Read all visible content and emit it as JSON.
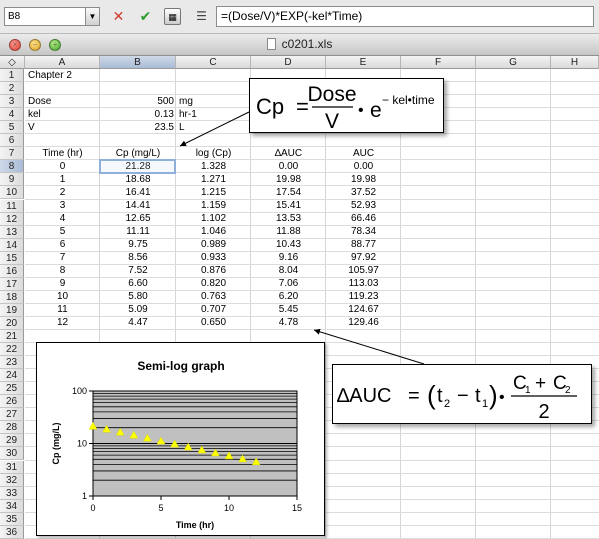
{
  "formula_bar": {
    "name_box": "B8",
    "formula": "=(Dose/V)*EXP(-kel*Time)"
  },
  "window": {
    "title": "c0201.xls"
  },
  "columns": [
    "A",
    "B",
    "C",
    "D",
    "E",
    "F",
    "G",
    "H"
  ],
  "selected_column": "B",
  "rows": [
    "1",
    "2",
    "3",
    "4",
    "5",
    "6",
    "7",
    "8",
    "9",
    "10",
    "11",
    "12",
    "13",
    "14",
    "15",
    "16",
    "17",
    "18",
    "19",
    "20",
    "21",
    "22",
    "23",
    "24",
    "25",
    "26",
    "27",
    "28",
    "29",
    "30",
    "31",
    "32",
    "33",
    "34",
    "35",
    "36"
  ],
  "selected_row": "8",
  "sheet": {
    "title": "Chapter 2",
    "params": [
      {
        "label": "Dose",
        "value": "500",
        "unit": "mg"
      },
      {
        "label": "kel",
        "value": "0.13",
        "unit": "hr-1"
      },
      {
        "label": "V",
        "value": "23.5",
        "unit": "L"
      }
    ],
    "headers": [
      "Time (hr)",
      "Cp (mg/L)",
      "log (Cp)",
      "∆AUC",
      "AUC"
    ],
    "data": [
      [
        "0",
        "21.28",
        "1.328",
        "0.00",
        "0.00"
      ],
      [
        "1",
        "18.68",
        "1.271",
        "19.98",
        "19.98"
      ],
      [
        "2",
        "16.41",
        "1.215",
        "17.54",
        "37.52"
      ],
      [
        "3",
        "14.41",
        "1.159",
        "15.41",
        "52.93"
      ],
      [
        "4",
        "12.65",
        "1.102",
        "13.53",
        "66.46"
      ],
      [
        "5",
        "11.11",
        "1.046",
        "11.88",
        "78.34"
      ],
      [
        "6",
        "9.75",
        "0.989",
        "10.43",
        "88.77"
      ],
      [
        "7",
        "8.56",
        "0.933",
        "9.16",
        "97.92"
      ],
      [
        "8",
        "7.52",
        "0.876",
        "8.04",
        "105.97"
      ],
      [
        "9",
        "6.60",
        "0.820",
        "7.06",
        "113.03"
      ],
      [
        "10",
        "5.80",
        "0.763",
        "6.20",
        "119.23"
      ],
      [
        "11",
        "5.09",
        "0.707",
        "5.45",
        "124.67"
      ],
      [
        "12",
        "4.47",
        "0.650",
        "4.78",
        "129.46"
      ]
    ]
  },
  "callouts": {
    "cp": {
      "lhs": "Cp",
      "eq": "=",
      "num": "Dose",
      "den": "V",
      "dot": "•",
      "base": "e",
      "exp": "− kel•time"
    },
    "auc": {
      "lhs": "∆AUC",
      "eq": "=",
      "open": "(",
      "t2": "t",
      "t2sub": "2",
      "minus": "−",
      "t1": "t",
      "t1sub": "1",
      "close": ")",
      "dot": "•",
      "num": "C",
      "c1sub": "1",
      "plus": "+",
      "c2": "C",
      "c2sub": "2",
      "den": "2"
    }
  },
  "chart_data": {
    "type": "scatter",
    "title": "Semi-log graph",
    "xlabel": "Time (hr)",
    "ylabel": "Cp (mg/L)",
    "xlim": [
      0,
      15
    ],
    "ylim": [
      1,
      100
    ],
    "yscale": "log",
    "x_ticks": [
      "0",
      "5",
      "10",
      "15"
    ],
    "y_ticks": [
      "1",
      "10",
      "100"
    ],
    "grid": true,
    "marker": "triangle",
    "marker_color": "#ffff00",
    "plot_bg": "#c0c0c0",
    "x": [
      0,
      1,
      2,
      3,
      4,
      5,
      6,
      7,
      8,
      9,
      10,
      11,
      12
    ],
    "y": [
      21.28,
      18.68,
      16.41,
      14.41,
      12.65,
      11.11,
      9.75,
      8.56,
      7.52,
      6.6,
      5.8,
      5.09,
      4.47
    ]
  }
}
